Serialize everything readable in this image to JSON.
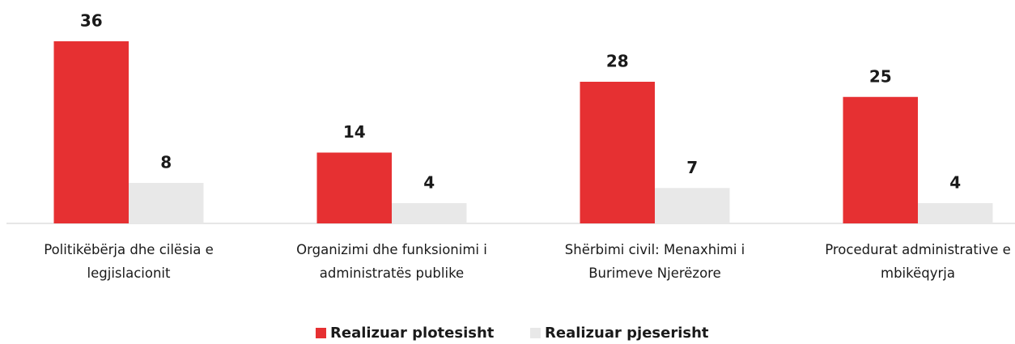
{
  "chart_data": {
    "type": "bar",
    "categories": [
      "Politikëbërja dhe cilësia e legjislacionit",
      "Organizimi dhe funksionimi i administratës publike",
      "Shërbimi civil: Menaxhimi i Burimeve Njerëzore",
      "Procedurat administrative e mbikëqyrja"
    ],
    "series": [
      {
        "name": "Realizuar plotesisht",
        "color": "#e63032",
        "values": [
          36,
          14,
          28,
          25
        ]
      },
      {
        "name": "Realizuar pjeserisht",
        "color": "#e8e8e8",
        "values": [
          8,
          4,
          7,
          4
        ]
      }
    ],
    "legend": "bottom"
  }
}
